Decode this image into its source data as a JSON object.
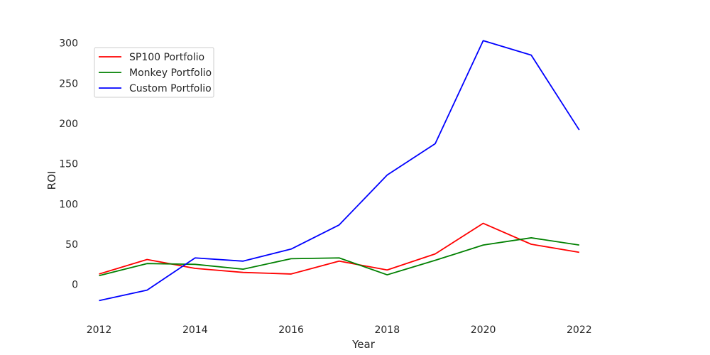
{
  "chart_data": {
    "type": "line",
    "title": "",
    "xlabel": "Year",
    "ylabel": "ROI",
    "x": [
      2012,
      2013,
      2014,
      2015,
      2016,
      2017,
      2018,
      2019,
      2020,
      2021,
      2022
    ],
    "series": [
      {
        "name": "SP100 Portfolio",
        "color": "#ff0000",
        "values": [
          13,
          31,
          20,
          15,
          13,
          29,
          18,
          38,
          76,
          50,
          40
        ]
      },
      {
        "name": "Monkey Portfolio",
        "color": "#008000",
        "values": [
          11,
          26,
          25,
          19,
          32,
          33,
          12,
          30,
          49,
          58,
          49
        ]
      },
      {
        "name": "Custom Portfolio",
        "color": "#0000ff",
        "values": [
          -20,
          -7,
          33,
          29,
          44,
          74,
          136,
          175,
          303,
          285,
          192
        ]
      }
    ],
    "xticks": [
      2012,
      2014,
      2016,
      2018,
      2020,
      2022
    ],
    "yticks": [
      0,
      50,
      100,
      150,
      200,
      250,
      300
    ],
    "xlim": [
      2011.8,
      2023.2
    ],
    "ylim": [
      -40,
      320
    ],
    "grid": false,
    "legend_position": "top-left"
  }
}
